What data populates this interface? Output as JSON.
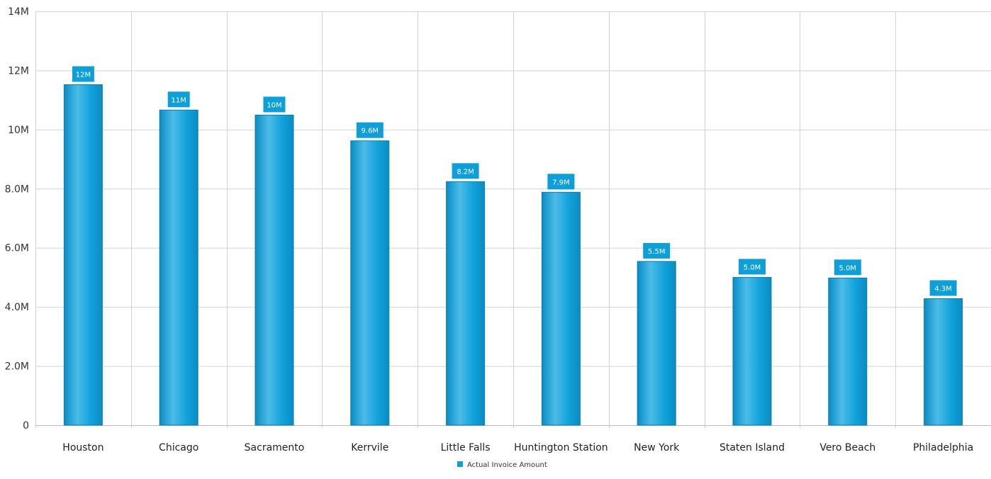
{
  "chart_data": {
    "type": "bar",
    "categories": [
      "Houston",
      "Chicago",
      "Sacramento",
      "Kerrvile",
      "Little Falls",
      "Huntington Station",
      "New York",
      "Staten Island",
      "Vero Beach",
      "Philadelphia"
    ],
    "series": [
      {
        "name": "Actual Invoice Amount",
        "values": [
          11.52,
          10.66,
          10.49,
          9.62,
          8.24,
          7.88,
          5.54,
          5.0,
          4.98,
          4.28
        ],
        "data_labels": [
          "12M",
          "11M",
          "10M",
          "9.6M",
          "8.2M",
          "7.9M",
          "5.5M",
          "5.0M",
          "5.0M",
          "4.3M"
        ]
      }
    ],
    "y_unit": "M",
    "ylim": [
      0,
      14
    ],
    "yticks": [
      0,
      2,
      4,
      6,
      8,
      10,
      12,
      14
    ],
    "ytick_labels": [
      "0",
      "2.0M",
      "4.0M",
      "6.0M",
      "8.0M",
      "10M",
      "12M",
      "14M"
    ],
    "title": "",
    "xlabel": "",
    "ylabel": "",
    "grid": true,
    "legend_position": "bottom",
    "colors": {
      "bar": "#0e9fd8",
      "bar_highlight": "#4cbce8",
      "bar_edge": "#0a7fae",
      "data_label_bg": "#0e9fd8",
      "grid": "#d3d3d3",
      "axis": "#bbbbbb"
    }
  }
}
